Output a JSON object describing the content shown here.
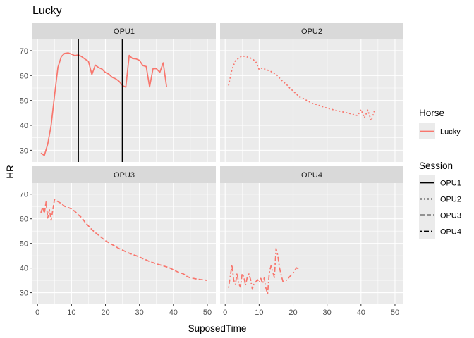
{
  "chart_data": {
    "type": "line",
    "title": "Lucky",
    "xlabel": "SuposedTime",
    "ylabel": "HR",
    "xlim": [
      -1.5,
      52.5
    ],
    "ylim": [
      25.3,
      74.5
    ],
    "x_ticks": [
      0,
      10,
      20,
      30,
      40,
      50
    ],
    "y_ticks": [
      30,
      40,
      50,
      60,
      70
    ],
    "grid": true,
    "facets": [
      "OPU1",
      "OPU2",
      "OPU3",
      "OPU4"
    ],
    "legend": {
      "position": "right",
      "color_title": "Horse",
      "color_entries": [
        {
          "label": "Lucky",
          "color": "#F8766D"
        }
      ],
      "linetype_title": "Session",
      "linetype_entries": [
        {
          "label": "OPU1",
          "linetype": "solid"
        },
        {
          "label": "OPU2",
          "linetype": "dotted"
        },
        {
          "label": "OPU3",
          "linetype": "dashed"
        },
        {
          "label": "OPU4",
          "linetype": "dotdash"
        }
      ]
    },
    "vlines": [
      {
        "facet": "OPU1",
        "x": 12
      },
      {
        "facet": "OPU1",
        "x": 25
      }
    ],
    "series": [
      {
        "facet": "OPU1",
        "name": "Lucky",
        "linetype": "solid",
        "color": "#F8766D",
        "x": [
          1,
          2,
          3,
          4,
          5,
          6,
          7,
          8,
          9,
          10,
          11,
          12,
          13,
          14,
          15,
          16,
          17,
          18,
          19,
          20,
          21,
          22,
          23,
          24,
          25,
          26,
          27,
          28,
          29,
          30,
          31,
          32,
          33,
          34,
          35,
          36,
          37,
          38
        ],
        "y": [
          28.9,
          27.9,
          32.5,
          40.0,
          51.9,
          63.3,
          67.6,
          68.9,
          69.1,
          68.6,
          68.0,
          68.3,
          67.6,
          66.6,
          65.7,
          60.4,
          64.2,
          63.2,
          62.6,
          61.2,
          60.6,
          59.3,
          58.7,
          57.7,
          56.0,
          55.3,
          68.1,
          66.8,
          66.7,
          66.1,
          64.0,
          63.6,
          55.4,
          62.7,
          62.8,
          61.3,
          65.1,
          55.4
        ]
      },
      {
        "facet": "OPU2",
        "name": "Lucky",
        "linetype": "dotted",
        "color": "#F8766D",
        "x": [
          1,
          2,
          3,
          4,
          5,
          6,
          7,
          8,
          9,
          10,
          11,
          12,
          13,
          14,
          15,
          16,
          17,
          18,
          19,
          20,
          21,
          22,
          23,
          24,
          25,
          26,
          27,
          28,
          29,
          30,
          31,
          32,
          33,
          34,
          35,
          36,
          37,
          38,
          39,
          40,
          41,
          42,
          43,
          44
        ],
        "y": [
          56.0,
          62.5,
          65.9,
          67.0,
          67.9,
          67.6,
          67.3,
          66.7,
          65.6,
          62.4,
          63.1,
          62.3,
          62.0,
          61.2,
          60.6,
          59.0,
          57.6,
          56.5,
          55.0,
          53.8,
          52.5,
          51.3,
          50.8,
          50.0,
          49.3,
          48.6,
          48.4,
          47.8,
          47.4,
          46.9,
          46.6,
          46.2,
          45.9,
          45.6,
          45.3,
          45.0,
          44.6,
          44.3,
          43.9,
          46.3,
          43.0,
          46.1,
          41.9,
          46.1
        ]
      },
      {
        "facet": "OPU3",
        "name": "Lucky",
        "linetype": "dashed",
        "color": "#F8766D",
        "x": [
          1,
          1.5,
          2,
          2.5,
          3,
          3.5,
          4,
          5,
          6,
          7,
          8,
          9,
          10,
          11,
          12,
          13,
          14,
          15,
          16,
          17,
          18,
          19,
          20,
          21,
          22,
          23,
          24,
          25,
          26,
          27,
          28,
          29,
          30,
          31,
          32,
          33,
          34,
          35,
          36,
          37,
          38,
          39,
          40,
          41,
          42,
          43,
          44,
          45,
          46,
          47,
          48,
          49,
          50
        ],
        "y": [
          62.5,
          64.7,
          62.3,
          66.8,
          60.3,
          63.7,
          59.4,
          67.9,
          67.0,
          66.2,
          65.1,
          64.6,
          64.0,
          63.0,
          61.6,
          60.5,
          58.6,
          57.1,
          55.6,
          54.4,
          53.3,
          52.2,
          51.1,
          50.3,
          49.5,
          48.7,
          47.9,
          47.3,
          46.6,
          46.0,
          45.5,
          45.0,
          44.5,
          43.8,
          43.3,
          42.6,
          42.2,
          41.7,
          41.3,
          40.9,
          40.5,
          40.0,
          39.3,
          38.6,
          38.1,
          37.6,
          36.6,
          36.0,
          35.8,
          35.5,
          35.3,
          35.2,
          35.0
        ]
      },
      {
        "facet": "OPU4",
        "name": "Lucky",
        "linetype": "dotdash",
        "color": "#F8766D",
        "x": [
          1,
          1.5,
          2,
          2.5,
          3,
          3.5,
          4,
          4.5,
          5,
          5.5,
          6,
          6.5,
          7,
          7.5,
          8,
          8.5,
          9,
          9.5,
          10,
          10.5,
          11,
          11.5,
          12,
          12.5,
          13,
          13.5,
          14,
          14.5,
          15,
          15.5,
          16,
          16.5,
          17,
          18,
          19,
          20,
          21,
          22
        ],
        "y": [
          32.0,
          36.6,
          41.3,
          35.1,
          33.3,
          38.0,
          33.5,
          32.3,
          37.7,
          36.4,
          33.0,
          36.2,
          37.6,
          35.3,
          31.4,
          33.6,
          34.4,
          35.3,
          34.1,
          35.8,
          33.7,
          36.0,
          31.8,
          29.6,
          38.1,
          40.9,
          38.5,
          36.2,
          47.9,
          45.0,
          40.0,
          37.1,
          34.5,
          35.0,
          36.5,
          38.0,
          40.1,
          39.4
        ]
      }
    ]
  }
}
